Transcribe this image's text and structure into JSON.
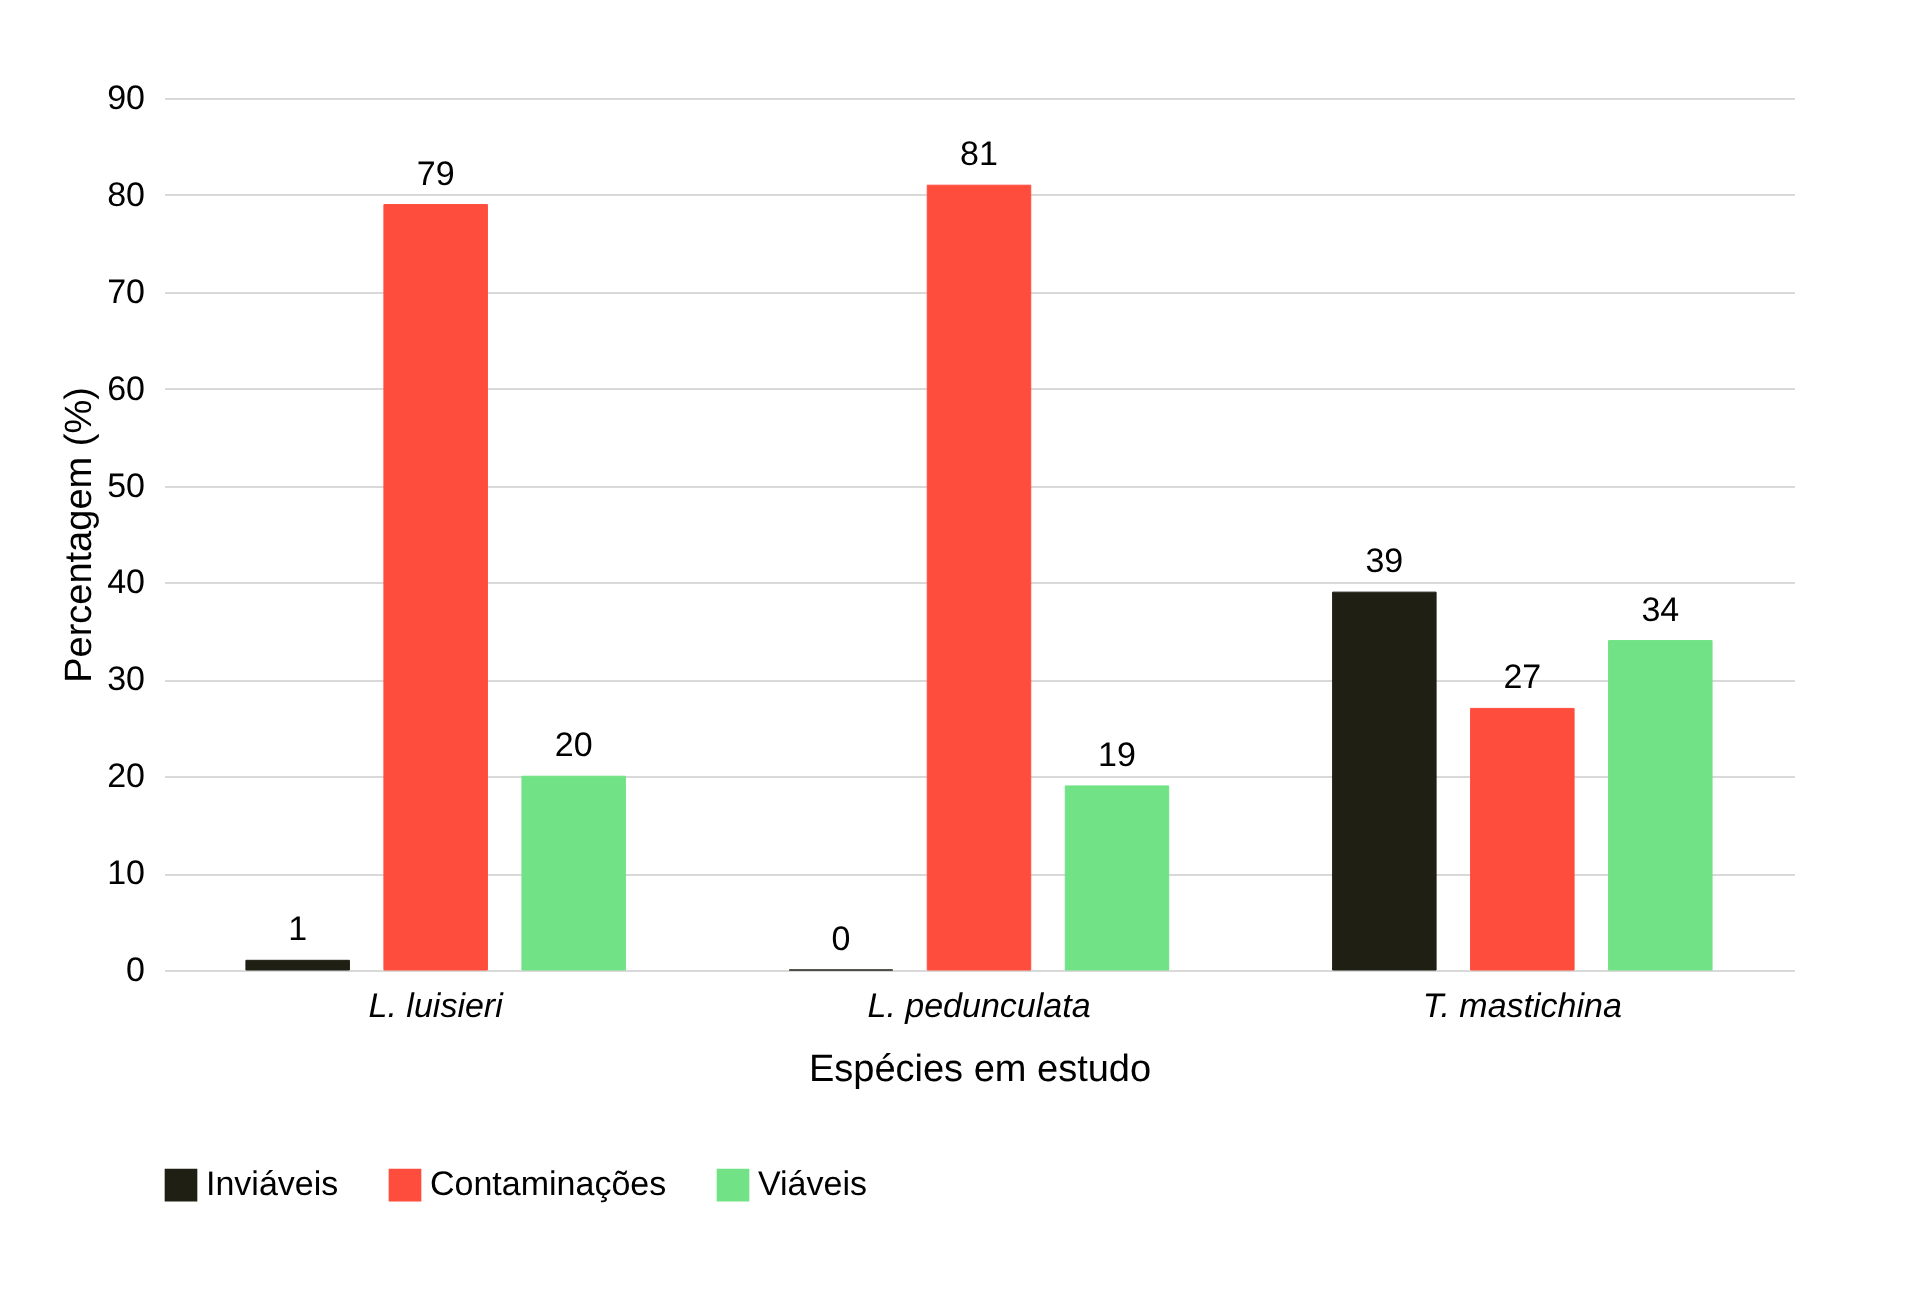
{
  "chart_data": {
    "type": "bar",
    "xlabel": "Espécies em estudo",
    "ylabel": "Percentagem (%)",
    "categories": [
      "L. luisieri",
      "L. pedunculata",
      "T. mastichina"
    ],
    "series": [
      {
        "name": "Inviáveis",
        "color": "#1f1f14",
        "values": [
          1,
          0,
          39
        ]
      },
      {
        "name": "Contaminações",
        "color": "#ff4d3d",
        "values": [
          79,
          81,
          27
        ]
      },
      {
        "name": "Viáveis",
        "color": "#72e286",
        "values": [
          20,
          19,
          34
        ]
      }
    ],
    "ylim": [
      0,
      90
    ],
    "yticks": [
      0,
      10,
      20,
      30,
      40,
      50,
      60,
      70,
      80,
      90
    ],
    "grid": "y",
    "legend": "bottom",
    "data_labels": true
  }
}
